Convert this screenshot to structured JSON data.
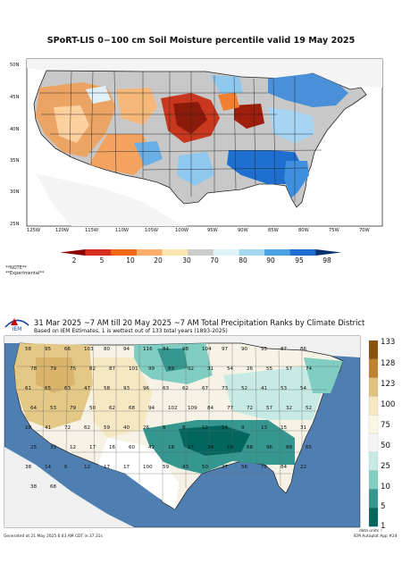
{
  "top_map": {
    "title": "SPoRT-LIS 0−100 cm Soil Moisture percentile valid 19 May 2025",
    "lat_labels": [
      "50N",
      "45N",
      "40N",
      "35N",
      "30N",
      "25N"
    ],
    "lon_labels": [
      "125W",
      "120W",
      "115W",
      "110W",
      "105W",
      "100W",
      "95W",
      "90W",
      "85W",
      "80W",
      "75W",
      "70W"
    ],
    "colorbar_labels": [
      "2",
      "5",
      "10",
      "20",
      "30",
      "70",
      "80",
      "90",
      "95",
      "98"
    ],
    "colorbar_colors": [
      "#8b0000",
      "#d7301f",
      "#f16913",
      "#fdae6b",
      "#fee6b0",
      "#cccccc",
      "#e0f3f8",
      "#a6d7f0",
      "#4ba3e3",
      "#1f6fd1",
      "#08306b"
    ],
    "note_lines": [
      "**NOTE**",
      "**Experimental**"
    ]
  },
  "bottom_map": {
    "title": "31 Mar 2025 ~7 AM till 20 May 2025 ~7 AM Total Precipitation Ranks by Climate District",
    "subtitle": "Based on IEM Estimates, 1 is wettest out of 133 total years (1893-2025)",
    "logo_text": "IEM",
    "colorbar_labels": [
      "133",
      "128",
      "123",
      "100",
      "75",
      "50",
      "25",
      "10",
      "5",
      "1"
    ],
    "colorbar_colors": [
      "#8c510a",
      "#bf812d",
      "#dfc27d",
      "#f6e8c3",
      "#fdf6e3",
      "#f5f5f5",
      "#c7eae5",
      "#80cdc1",
      "#35978f",
      "#01665e"
    ],
    "district_ranks": [
      "58",
      "95",
      "66",
      "103",
      "80",
      "94",
      "116",
      "84",
      "98",
      "104",
      "97",
      "90",
      "95",
      "87",
      "86",
      "78",
      "79",
      "75",
      "82",
      "87",
      "101",
      "99",
      "89",
      "92",
      "31",
      "54",
      "26",
      "55",
      "57",
      "74",
      "61",
      "65",
      "63",
      "47",
      "58",
      "93",
      "96",
      "63",
      "62",
      "67",
      "73",
      "52",
      "41",
      "53",
      "54",
      "64",
      "53",
      "79",
      "50",
      "62",
      "68",
      "94",
      "102",
      "109",
      "84",
      "77",
      "72",
      "57",
      "32",
      "52",
      "28",
      "41",
      "72",
      "62",
      "59",
      "40",
      "26",
      "6",
      "8",
      "12",
      "14",
      "9",
      "13",
      "15",
      "31",
      "25",
      "33",
      "12",
      "17",
      "16",
      "60",
      "42",
      "18",
      "27",
      "34",
      "19",
      "68",
      "96",
      "88",
      "65",
      "38",
      "14",
      "6",
      "12",
      "17",
      "17",
      "100",
      "59",
      "43",
      "50",
      "37",
      "56",
      "70",
      "84",
      "22",
      "38",
      "68"
    ],
    "data_units_label": "data units ::",
    "generated_text": "Generated at 21 May 2025 6:43 AM CDT in 37.31s",
    "app_text": "IEM Autoplot App #24"
  }
}
